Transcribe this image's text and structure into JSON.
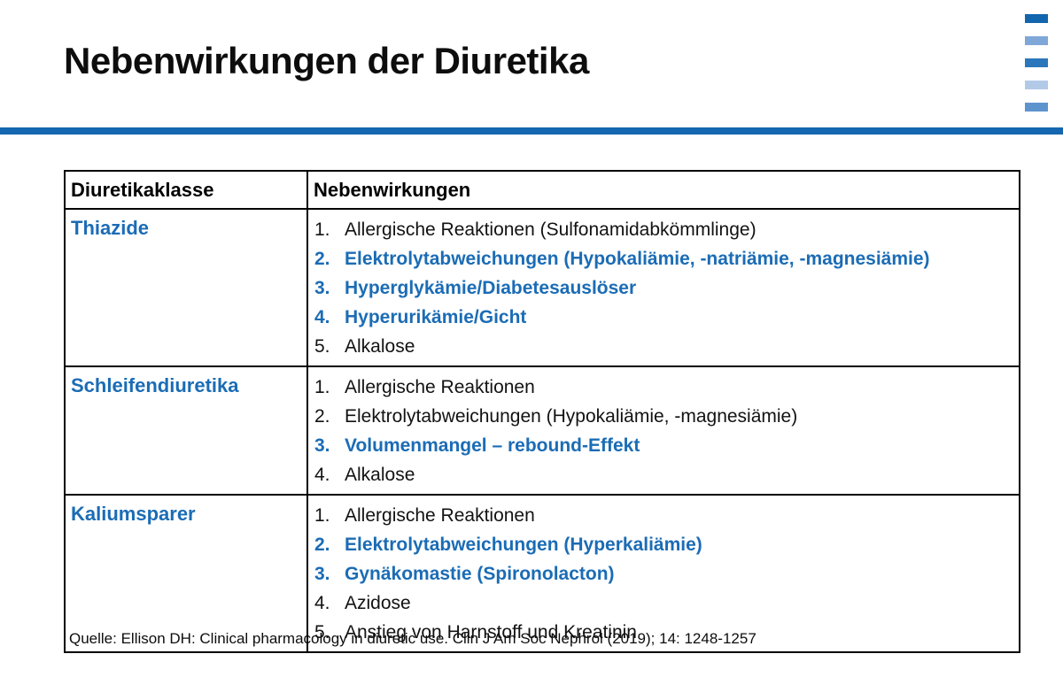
{
  "slide": {
    "title": "Nebenwirkungen der Diuretika",
    "source": "Quelle: Ellison DH: Clinical pharmacology in diuretic use. Clin J Am Soc Nephrol (2019); 14: 1248-1257"
  },
  "colors": {
    "accent_blue": "#1B6CB5",
    "rule_blue": "#1467B0",
    "corner_dashes": [
      "#1166AE",
      "#7FA7D8",
      "#2B77BC",
      "#B3C9E8",
      "#5E94CE"
    ]
  },
  "table": {
    "headers": [
      "Diuretikaklasse",
      "Nebenwirkungen"
    ],
    "rows": [
      {
        "class": "Thiazide",
        "effects": [
          {
            "num": "1.",
            "text": "Allergische Reaktionen (Sulfonamidabkömmlinge)",
            "highlight": false
          },
          {
            "num": "2.",
            "text": "Elektrolytabweichungen (Hypokaliämie, -natriämie, -magnesiämie)",
            "highlight": true
          },
          {
            "num": "3.",
            "text": "Hyperglykämie/Diabetesauslöser",
            "highlight": true
          },
          {
            "num": "4.",
            "text": "Hyperurikämie/Gicht",
            "highlight": true
          },
          {
            "num": "5.",
            "text": "Alkalose",
            "highlight": false
          }
        ]
      },
      {
        "class": "Schleifendiuretika",
        "effects": [
          {
            "num": "1.",
            "text": "Allergische Reaktionen",
            "highlight": false
          },
          {
            "num": "2.",
            "text": "Elektrolytabweichungen (Hypokaliämie, -magnesiämie)",
            "highlight": false
          },
          {
            "num": "3.",
            "text": "Volumenmangel – rebound-Effekt",
            "highlight": true
          },
          {
            "num": "4.",
            "text": "Alkalose",
            "highlight": false
          }
        ]
      },
      {
        "class": "Kaliumsparer",
        "effects": [
          {
            "num": "1.",
            "text": "Allergische Reaktionen",
            "highlight": false
          },
          {
            "num": "2.",
            "text": "Elektrolytabweichungen (Hyperkaliämie)",
            "highlight": true
          },
          {
            "num": "3.",
            "text": "Gynäkomastie (Spironolacton)",
            "highlight": true
          },
          {
            "num": "4.",
            "text": "Azidose",
            "highlight": false
          },
          {
            "num": "5.",
            "text": "Anstieg von Harnstoff und Kreatinin",
            "highlight": false
          }
        ]
      }
    ]
  }
}
